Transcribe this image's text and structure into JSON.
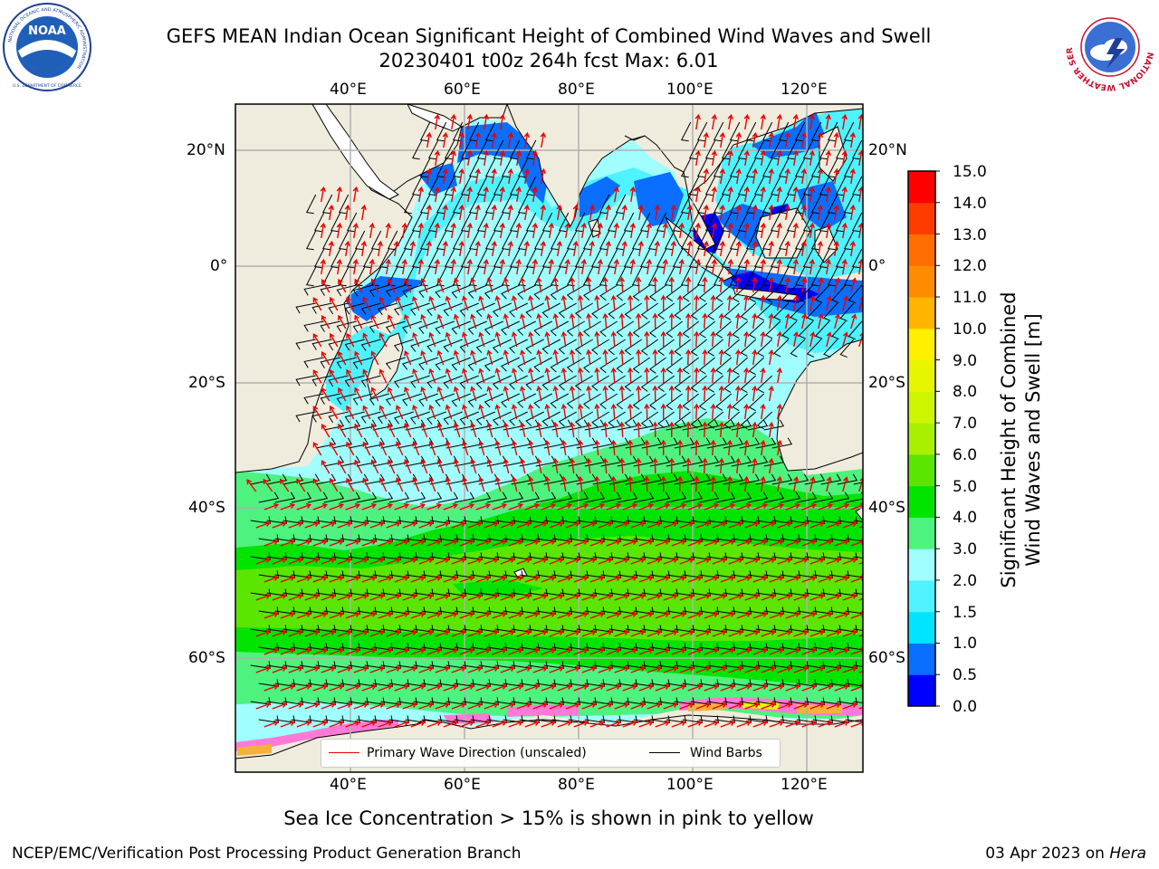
{
  "title": {
    "line1": "GEFS MEAN Indian Ocean Significant Height of Combined Wind Waves and Swell",
    "line2": "20230401 t00z 264h fcst   Max: 6.01"
  },
  "logos": {
    "left": "NOAA logo",
    "right": "National Weather Service logo",
    "left_text": "NATIONAL OCEANIC AND ATMOSPHERIC ADMINISTRATION",
    "left_text2": "U.S. DEPARTMENT OF COMMERCE",
    "right_text": "NATIONAL WEATHER SERVICE"
  },
  "map": {
    "lon_labels": [
      "40°E",
      "60°E",
      "80°E",
      "100°E",
      "120°E"
    ],
    "lat_labels": [
      "20°N",
      "0°",
      "20°S",
      "40°S",
      "60°S"
    ],
    "lon_range": [
      20,
      130
    ],
    "lat_range": [
      -73,
      28
    ],
    "gridlines": true,
    "colors": {
      "land": "#efecdd",
      "coast": "#000000",
      "grid": "#b0b0b0",
      "wave_arrow": "#ee0000",
      "barb": "#000000"
    }
  },
  "legend": {
    "wave_label": "Primary Wave Direction (unscaled)",
    "barb_label": "Wind Barbs"
  },
  "colorbar": {
    "label_line1": "Significant Height of Combined",
    "label_line2": "Wind Waves and Swell [m]",
    "ticks": [
      "15.0",
      "14.0",
      "13.0",
      "12.0",
      "11.0",
      "10.0",
      "9.0",
      "8.0",
      "7.0",
      "6.0",
      "5.0",
      "4.0",
      "3.0",
      "2.0",
      "1.5",
      "1.0",
      "0.5",
      "0.0"
    ],
    "bands": [
      {
        "from": 0.0,
        "to": 0.5,
        "color": "#0000ff"
      },
      {
        "from": 0.5,
        "to": 1.0,
        "color": "#0a6eff"
      },
      {
        "from": 1.0,
        "to": 1.5,
        "color": "#00e4ff"
      },
      {
        "from": 1.5,
        "to": 2.0,
        "color": "#4ff2ff"
      },
      {
        "from": 2.0,
        "to": 3.0,
        "color": "#a0feff"
      },
      {
        "from": 3.0,
        "to": 4.0,
        "color": "#4ef27e"
      },
      {
        "from": 4.0,
        "to": 5.0,
        "color": "#00e400"
      },
      {
        "from": 5.0,
        "to": 6.0,
        "color": "#5ae600"
      },
      {
        "from": 6.0,
        "to": 7.0,
        "color": "#a8f000"
      },
      {
        "from": 7.0,
        "to": 8.0,
        "color": "#cef500"
      },
      {
        "from": 8.0,
        "to": 9.0,
        "color": "#e8f500"
      },
      {
        "from": 9.0,
        "to": 10.0,
        "color": "#fff000"
      },
      {
        "from": 10.0,
        "to": 11.0,
        "color": "#ffb400"
      },
      {
        "from": 11.0,
        "to": 12.0,
        "color": "#ff8c00"
      },
      {
        "from": 12.0,
        "to": 13.0,
        "color": "#ff6e00"
      },
      {
        "from": 13.0,
        "to": 14.0,
        "color": "#ff3c00"
      },
      {
        "from": 14.0,
        "to": 15.0,
        "color": "#ff0000"
      }
    ]
  },
  "footer": {
    "note": "Sea Ice Concentration > 15% is shown in pink to yellow",
    "left": "NCEP/EMC/Verification Post Processing Product Generation Branch",
    "right_prefix": "03 Apr 2023 on ",
    "right_machine": "Hera"
  }
}
